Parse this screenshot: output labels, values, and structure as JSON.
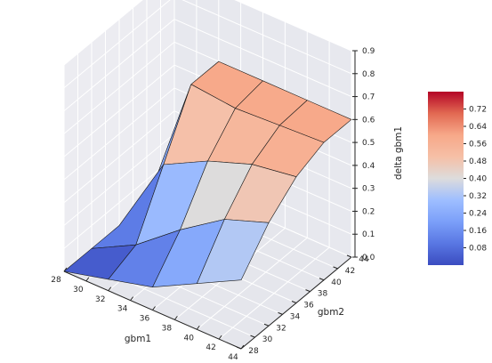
{
  "chart_data": {
    "type": "surface3d",
    "title": "",
    "xlabel": "gbm1",
    "ylabel": "gbm2",
    "zlabel": "delta gbm1",
    "xlim": [
      28,
      44
    ],
    "ylim": [
      28,
      44
    ],
    "zlim": [
      0.0,
      0.9
    ],
    "x_ticks": [
      "28",
      "30",
      "32",
      "34",
      "36",
      "38",
      "40",
      "42",
      "44"
    ],
    "y_ticks": [
      "28",
      "30",
      "32",
      "34",
      "36",
      "38",
      "40",
      "42",
      "44"
    ],
    "z_ticks": [
      "0.0",
      "0.1",
      "0.2",
      "0.3",
      "0.4",
      "0.5",
      "0.6",
      "0.7",
      "0.8",
      "0.9"
    ],
    "grid": true,
    "colormap": "coolwarm",
    "x": [
      28,
      32,
      36,
      40,
      44
    ],
    "y": [
      28,
      32,
      36,
      40,
      44
    ],
    "z": [
      [
        0.0,
        0.0,
        0.0,
        0.0,
        0.0
      ],
      [
        0.05,
        0.1,
        0.35,
        0.6,
        0.6
      ],
      [
        0.1,
        0.25,
        0.45,
        0.58,
        0.6
      ],
      [
        0.2,
        0.38,
        0.52,
        0.59,
        0.6
      ],
      [
        0.3,
        0.45,
        0.55,
        0.6,
        0.6
      ]
    ],
    "colorbar": {
      "ticks": [
        "0.08",
        "0.16",
        "0.24",
        "0.32",
        "0.40",
        "0.48",
        "0.56",
        "0.64",
        "0.72"
      ],
      "range": [
        0.0,
        0.8
      ]
    }
  }
}
